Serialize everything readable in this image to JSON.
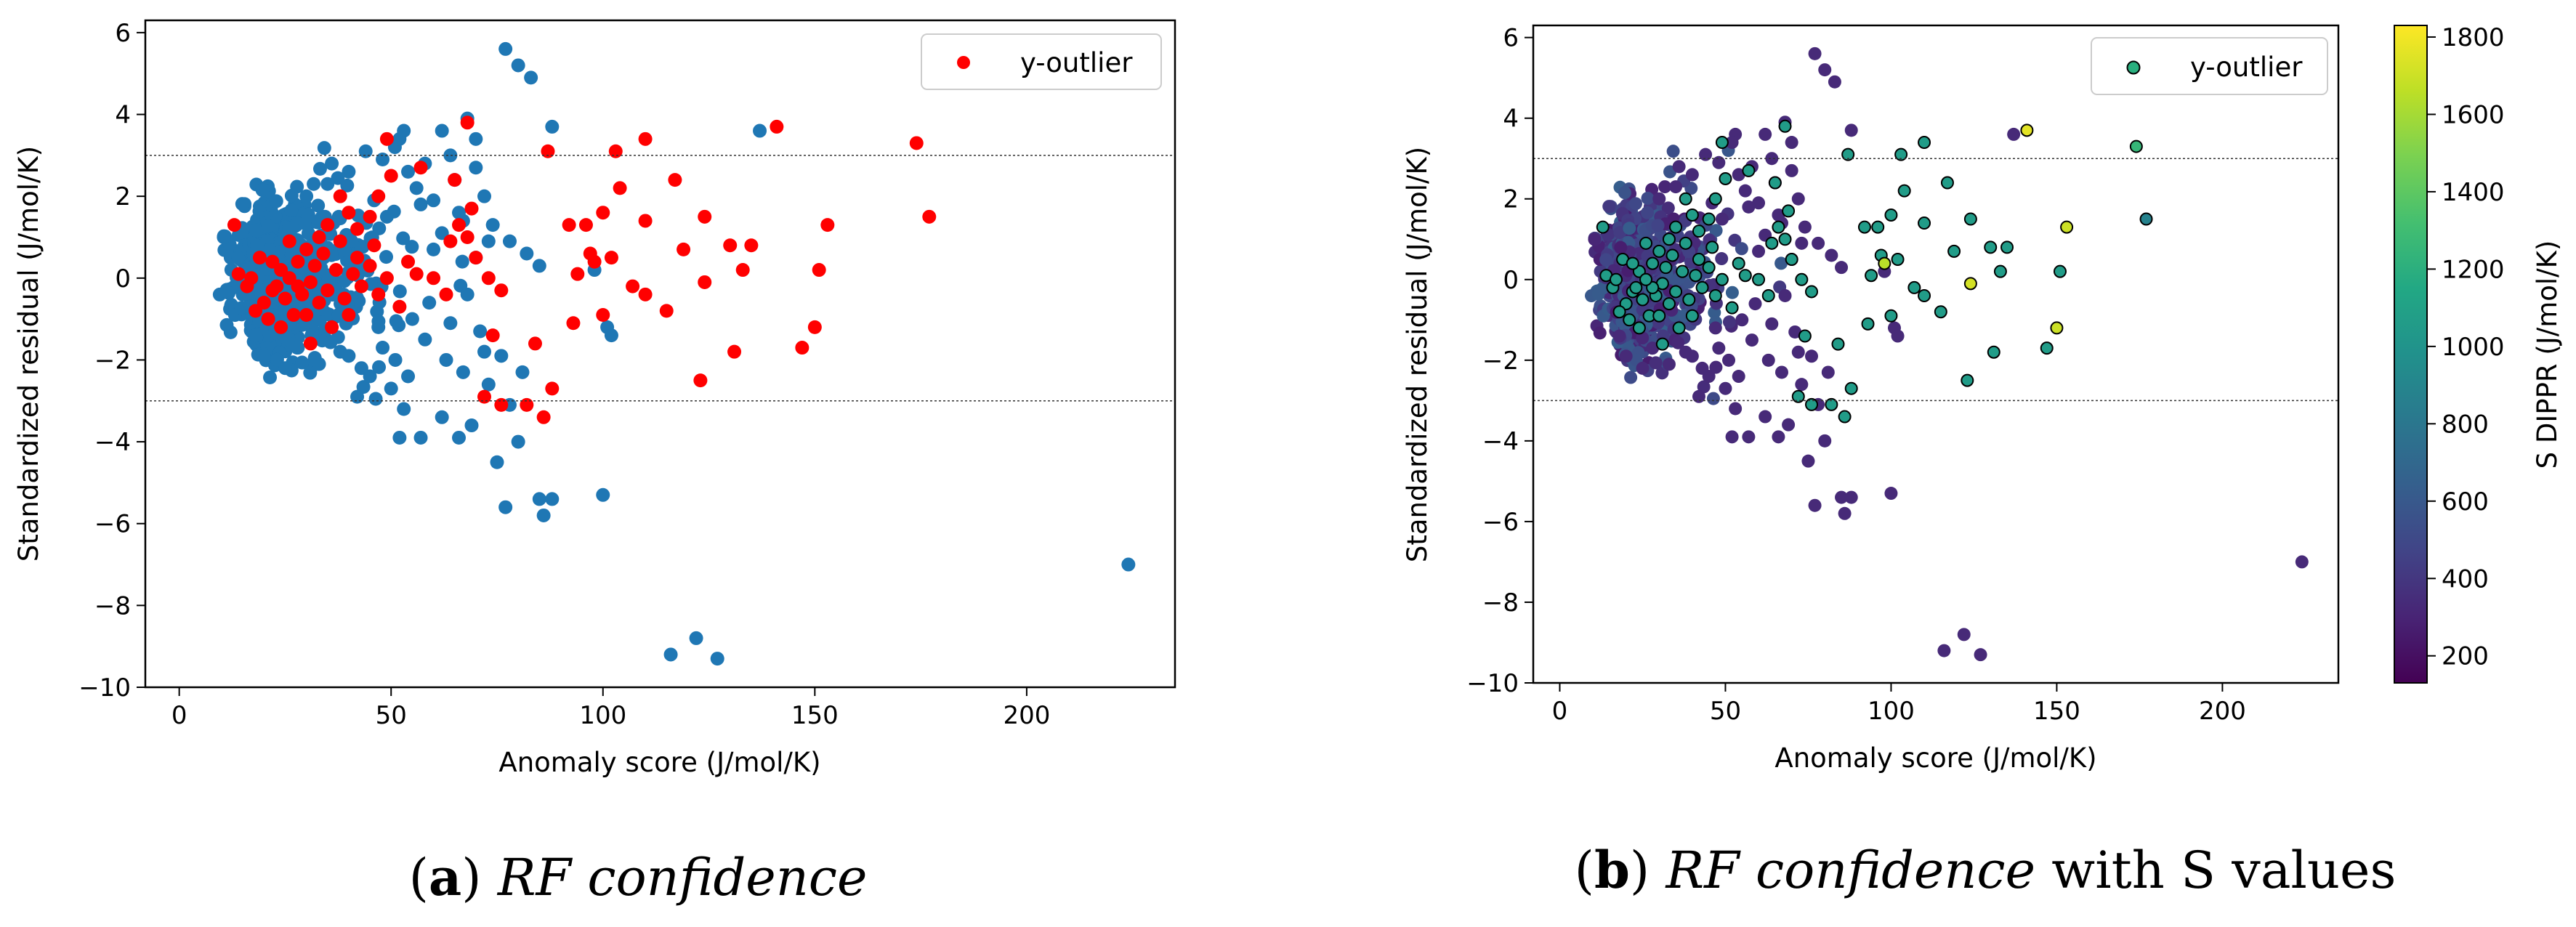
{
  "chart_data": [
    {
      "type": "scatter",
      "caption_letter": "a",
      "caption_title": "RF confidence",
      "caption_suffix": "",
      "xlabel": "Anomaly score (J/mol/K)",
      "ylabel": "Standardized residual (J/mol/K)",
      "xlim": [
        -8,
        235
      ],
      "ylim": [
        -10,
        6.3
      ],
      "xticks": [
        0,
        50,
        100,
        150,
        200
      ],
      "yticks": [
        -10,
        -8,
        -6,
        -4,
        -2,
        0,
        2,
        4,
        6
      ],
      "hlines": [
        3,
        -3
      ],
      "legend": {
        "label": "y-outlier",
        "color": "#ff0000",
        "loc": "top-right"
      },
      "inlier_color": "#1f77b4",
      "outlier_color": "#ff0000",
      "inlier_cloud": {
        "center": [
          22,
          0
        ],
        "spread": [
          14,
          0.9
        ],
        "count": 700,
        "seed": 11
      },
      "inliers": [
        [
          77,
          5.6
        ],
        [
          80,
          5.2
        ],
        [
          83,
          4.9
        ],
        [
          88,
          3.7
        ],
        [
          68,
          3.9
        ],
        [
          62,
          3.6
        ],
        [
          53,
          3.6
        ],
        [
          52,
          3.4
        ],
        [
          48,
          2.9
        ],
        [
          58,
          2.8
        ],
        [
          70,
          2.7
        ],
        [
          65,
          2.4
        ],
        [
          56,
          2.2
        ],
        [
          72,
          2.0
        ],
        [
          60,
          1.9
        ],
        [
          66,
          1.6
        ],
        [
          74,
          1.3
        ],
        [
          78,
          0.9
        ],
        [
          82,
          0.6
        ],
        [
          85,
          0.3
        ],
        [
          62,
          1.1
        ],
        [
          70,
          0.5
        ],
        [
          55,
          -1.0
        ],
        [
          58,
          -1.5
        ],
        [
          63,
          -2.0
        ],
        [
          67,
          -2.3
        ],
        [
          72,
          -1.8
        ],
        [
          50,
          -2.7
        ],
        [
          53,
          -3.2
        ],
        [
          57,
          -3.9
        ],
        [
          62,
          -3.4
        ],
        [
          66,
          -3.9
        ],
        [
          69,
          -3.6
        ],
        [
          73,
          -2.6
        ],
        [
          78,
          -3.1
        ],
        [
          81,
          -2.3
        ],
        [
          52,
          -3.9
        ],
        [
          45,
          -2.4
        ],
        [
          42,
          -2.9
        ],
        [
          40,
          -1.9
        ],
        [
          75,
          -4.5
        ],
        [
          77,
          -5.6
        ],
        [
          80,
          -4.0
        ],
        [
          85,
          -5.4
        ],
        [
          86,
          -5.8
        ],
        [
          88,
          -5.4
        ],
        [
          100,
          -5.3
        ],
        [
          98,
          0.2
        ],
        [
          101,
          -1.2
        ],
        [
          102,
          -1.4
        ],
        [
          116,
          -9.2
        ],
        [
          122,
          -8.8
        ],
        [
          127,
          -9.3
        ],
        [
          137,
          3.6
        ],
        [
          224,
          -7.0
        ],
        [
          44,
          3.1
        ],
        [
          40,
          2.6
        ],
        [
          35,
          2.3
        ],
        [
          30,
          2.0
        ],
        [
          36,
          2.8
        ],
        [
          46,
          1.9
        ],
        [
          49,
          1.5
        ],
        [
          47,
          -1.2
        ],
        [
          38,
          -1.8
        ],
        [
          33,
          -2.1
        ],
        [
          28,
          -1.7
        ],
        [
          25,
          -2.2
        ],
        [
          20,
          -1.9
        ],
        [
          18,
          -1.4
        ],
        [
          43,
          -2.2
        ],
        [
          48,
          -1.7
        ],
        [
          51,
          -2.0
        ],
        [
          54,
          -2.4
        ],
        [
          59,
          -0.6
        ],
        [
          64,
          -1.1
        ],
        [
          68,
          -0.4
        ],
        [
          71,
          -1.3
        ],
        [
          76,
          -1.9
        ],
        [
          60,
          0.7
        ],
        [
          67,
          1.4
        ],
        [
          73,
          0.9
        ],
        [
          57,
          1.8
        ],
        [
          54,
          2.6
        ],
        [
          64,
          3.0
        ],
        [
          70,
          3.4
        ]
      ],
      "outliers": [
        [
          141,
          3.7
        ],
        [
          174,
          3.3
        ],
        [
          177,
          1.5
        ],
        [
          110,
          3.4
        ],
        [
          103,
          3.1
        ],
        [
          87,
          3.1
        ],
        [
          117,
          2.4
        ],
        [
          104,
          2.2
        ],
        [
          110,
          1.4
        ],
        [
          100,
          1.6
        ],
        [
          92,
          1.3
        ],
        [
          124,
          1.5
        ],
        [
          130,
          0.8
        ],
        [
          153,
          1.3
        ],
        [
          135,
          0.8
        ],
        [
          119,
          0.7
        ],
        [
          133,
          0.2
        ],
        [
          151,
          0.2
        ],
        [
          97,
          0.6
        ],
        [
          96,
          1.3
        ],
        [
          94,
          0.1
        ],
        [
          98,
          0.4
        ],
        [
          102,
          0.5
        ],
        [
          110,
          -0.4
        ],
        [
          107,
          -0.2
        ],
        [
          115,
          -0.8
        ],
        [
          124,
          -0.1
        ],
        [
          100,
          -0.9
        ],
        [
          93,
          -1.1
        ],
        [
          150,
          -1.2
        ],
        [
          147,
          -1.7
        ],
        [
          131,
          -1.8
        ],
        [
          123,
          -2.5
        ],
        [
          88,
          -2.7
        ],
        [
          84,
          -1.6
        ],
        [
          74,
          -1.4
        ],
        [
          72,
          -2.9
        ],
        [
          76,
          -3.1
        ],
        [
          82,
          -3.1
        ],
        [
          86,
          -3.4
        ],
        [
          76,
          -0.3
        ],
        [
          73,
          0.0
        ],
        [
          70,
          0.5
        ],
        [
          68,
          1.0
        ],
        [
          66,
          1.3
        ],
        [
          69,
          1.7
        ],
        [
          65,
          2.4
        ],
        [
          68,
          3.8
        ],
        [
          57,
          2.7
        ],
        [
          50,
          2.5
        ],
        [
          49,
          3.4
        ],
        [
          47,
          2.0
        ],
        [
          45,
          1.5
        ],
        [
          42,
          1.2
        ],
        [
          40,
          1.6
        ],
        [
          38,
          2.0
        ],
        [
          35,
          1.3
        ],
        [
          33,
          1.0
        ],
        [
          30,
          0.7
        ],
        [
          28,
          0.4
        ],
        [
          26,
          0.9
        ],
        [
          24,
          0.2
        ],
        [
          22,
          -0.3
        ],
        [
          20,
          -0.6
        ],
        [
          18,
          -0.8
        ],
        [
          16,
          -0.2
        ],
        [
          14,
          0.1
        ],
        [
          13,
          1.3
        ],
        [
          19,
          0.5
        ],
        [
          23,
          -0.2
        ],
        [
          25,
          -0.5
        ],
        [
          27,
          -0.9
        ],
        [
          29,
          -0.4
        ],
        [
          31,
          -0.1
        ],
        [
          33,
          -0.6
        ],
        [
          35,
          -0.3
        ],
        [
          37,
          0.2
        ],
        [
          39,
          -0.5
        ],
        [
          41,
          0.1
        ],
        [
          43,
          -0.2
        ],
        [
          45,
          0.3
        ],
        [
          47,
          -0.4
        ],
        [
          49,
          0.0
        ],
        [
          52,
          -0.7
        ],
        [
          54,
          0.4
        ],
        [
          56,
          0.1
        ],
        [
          60,
          0.0
        ],
        [
          63,
          -0.4
        ],
        [
          64,
          0.9
        ],
        [
          40,
          -0.9
        ],
        [
          36,
          -1.2
        ],
        [
          31,
          -1.6
        ],
        [
          24,
          -1.2
        ],
        [
          21,
          -1.0
        ],
        [
          17,
          0.0
        ],
        [
          32,
          0.3
        ],
        [
          28,
          -0.2
        ],
        [
          26,
          0.0
        ],
        [
          34,
          0.6
        ],
        [
          38,
          0.9
        ],
        [
          42,
          0.5
        ],
        [
          46,
          0.8
        ],
        [
          30,
          -0.9
        ],
        [
          22,
          0.4
        ]
      ]
    },
    {
      "type": "scatter",
      "caption_letter": "b",
      "caption_title": "RF confidence",
      "caption_suffix": " with S values",
      "xlabel": "Anomaly score (J/mol/K)",
      "ylabel": "Standardized residual (J/mol/K)",
      "xlim": [
        -8,
        235
      ],
      "ylim": [
        -10,
        6.3
      ],
      "xticks": [
        0,
        50,
        100,
        150,
        200
      ],
      "yticks": [
        -10,
        -8,
        -6,
        -4,
        -2,
        0,
        2,
        4,
        6
      ],
      "hlines": [
        3,
        -3
      ],
      "legend": {
        "label": "y-outlier",
        "color": "#2ab07f",
        "loc": "top-right"
      },
      "colorbar": {
        "label": "S DIPPR (J/mol/K)",
        "min": 130,
        "max": 1830,
        "ticks": [
          200,
          400,
          600,
          800,
          1000,
          1200,
          1400,
          1600,
          1800
        ],
        "colormap": "viridis"
      },
      "inlier_cloud": {
        "center": [
          22,
          0
        ],
        "spread": [
          14,
          0.9
        ],
        "count": 700,
        "seed": 11,
        "value_range": [
          260,
          640
        ]
      },
      "inliers_value": 330,
      "outliers_value": 1060,
      "outlier_overrides": [
        [
          141,
          3.7,
          1760
        ],
        [
          153,
          1.3,
          1700
        ],
        [
          98,
          0.4,
          1650
        ],
        [
          124,
          -0.1,
          1720
        ],
        [
          150,
          -1.2,
          1700
        ],
        [
          72,
          0.7,
          1500
        ],
        [
          177,
          1.5,
          880
        ],
        [
          174,
          3.3,
          1250
        ]
      ]
    }
  ]
}
